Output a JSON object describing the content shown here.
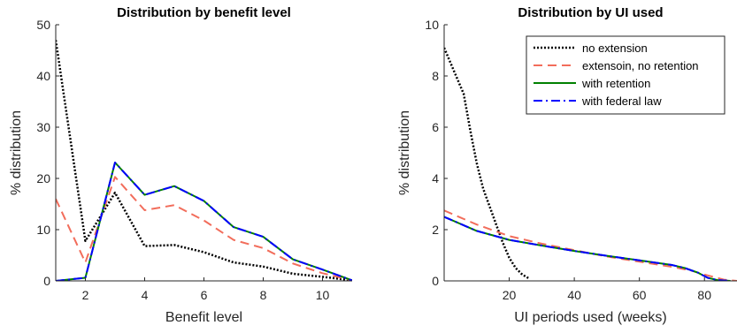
{
  "chart_data": [
    {
      "type": "line",
      "title": "Distribution by benefit level",
      "xlabel": "Benefit level",
      "ylabel": "% distribution",
      "xlim": [
        1,
        11
      ],
      "ylim": [
        0,
        50
      ],
      "xticks": [
        2,
        4,
        6,
        8,
        10
      ],
      "yticks": [
        0,
        10,
        20,
        30,
        40,
        50
      ],
      "x": [
        1,
        2,
        3,
        4,
        5,
        6,
        7,
        8,
        9,
        10,
        11
      ],
      "series": [
        {
          "key": "no_extension",
          "color": "#000000",
          "style": "dotted",
          "values": [
            47,
            7.8,
            17.2,
            6.8,
            7.0,
            5.6,
            3.6,
            2.8,
            1.4,
            0.8,
            0.1
          ]
        },
        {
          "key": "extension_no_retention",
          "color": "#f26d5b",
          "style": "dashed",
          "values": [
            16,
            3.6,
            20.3,
            13.8,
            14.8,
            11.8,
            8.0,
            6.4,
            3.4,
            1.5,
            0.1
          ]
        },
        {
          "key": "with_retention",
          "color": "#008000",
          "style": "solid",
          "values": [
            0,
            0.6,
            23.1,
            16.8,
            18.5,
            15.6,
            10.5,
            8.6,
            4.2,
            2.2,
            0.1
          ]
        },
        {
          "key": "with_federal_law",
          "color": "#0000ff",
          "style": "dashdot",
          "values": [
            0,
            0.6,
            23.1,
            16.8,
            18.5,
            15.6,
            10.5,
            8.6,
            4.2,
            2.2,
            0.1
          ]
        }
      ]
    },
    {
      "type": "line",
      "title": "Distribution by UI used",
      "xlabel": "UI periods used (weeks)",
      "ylabel": "% distribution",
      "xlim": [
        0,
        90
      ],
      "ylim": [
        0,
        10
      ],
      "xticks": [
        20,
        40,
        60,
        80
      ],
      "yticks": [
        0,
        2,
        4,
        6,
        8,
        10
      ],
      "legend_position": "top-right",
      "series": [
        {
          "key": "no_extension",
          "name": "no extension",
          "color": "#000000",
          "style": "dotted",
          "x": [
            0,
            3,
            6,
            8,
            10,
            12,
            14,
            16,
            18,
            20,
            22,
            24,
            26
          ],
          "y": [
            9.1,
            8.2,
            7.3,
            5.9,
            4.6,
            3.6,
            2.9,
            2.2,
            1.5,
            0.9,
            0.5,
            0.25,
            0.1
          ]
        },
        {
          "key": "extension_no_retention",
          "name": "extensoin, no retention",
          "color": "#f26d5b",
          "style": "dashed",
          "x": [
            0,
            10,
            20,
            30,
            40,
            50,
            60,
            70,
            76,
            80,
            86,
            90
          ],
          "y": [
            2.75,
            2.2,
            1.75,
            1.45,
            1.2,
            0.95,
            0.75,
            0.55,
            0.4,
            0.25,
            0.05,
            0.0
          ]
        },
        {
          "key": "with_retention",
          "name": "with retention",
          "color": "#008000",
          "style": "solid",
          "x": [
            0,
            10,
            20,
            30,
            40,
            50,
            60,
            70,
            74,
            78,
            81,
            84,
            88
          ],
          "y": [
            2.5,
            1.95,
            1.6,
            1.38,
            1.17,
            0.98,
            0.8,
            0.62,
            0.5,
            0.32,
            0.12,
            0.03,
            0.0
          ]
        },
        {
          "key": "with_federal_law",
          "name": "with federal law",
          "color": "#0000ff",
          "style": "dashdot",
          "x": [
            0,
            10,
            20,
            30,
            40,
            50,
            60,
            70,
            74,
            78,
            81,
            84,
            88
          ],
          "y": [
            2.5,
            1.95,
            1.6,
            1.38,
            1.17,
            0.98,
            0.8,
            0.62,
            0.5,
            0.32,
            0.12,
            0.03,
            0.0
          ]
        }
      ]
    }
  ]
}
